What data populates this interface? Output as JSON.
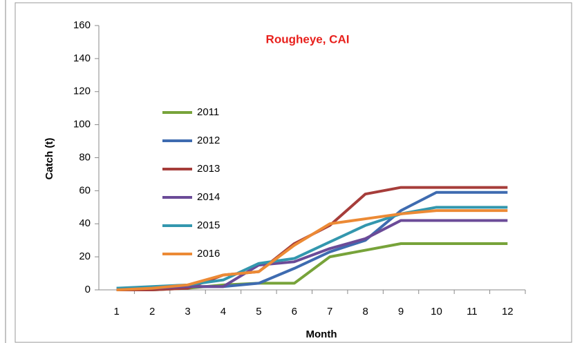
{
  "chart_data": {
    "type": "line",
    "title": "Rougheye, CAI",
    "x_label": "Month",
    "y_label": "Catch (t)",
    "categories": [
      "1",
      "2",
      "3",
      "4",
      "5",
      "6",
      "7",
      "8",
      "9",
      "10",
      "11",
      "12"
    ],
    "ylim": [
      0,
      160
    ],
    "yticks": [
      0,
      20,
      40,
      60,
      80,
      100,
      120,
      140,
      160
    ],
    "grid": false,
    "legend": "left",
    "series": [
      {
        "name": "2011",
        "color": "#77a33a",
        "values": [
          0,
          0,
          1,
          3,
          4,
          4,
          20,
          24,
          28,
          28,
          28,
          28
        ]
      },
      {
        "name": "2012",
        "color": "#3e6bb0",
        "values": [
          0,
          1,
          2,
          2,
          4,
          13,
          23,
          30,
          48,
          59,
          59,
          59
        ]
      },
      {
        "name": "2013",
        "color": "#a63d3a",
        "values": [
          0,
          0,
          1,
          9,
          11,
          28,
          39,
          58,
          62,
          62,
          62,
          62
        ]
      },
      {
        "name": "2014",
        "color": "#6b4b98",
        "values": [
          1,
          1,
          2,
          2,
          15,
          17,
          25,
          31,
          42,
          42,
          42,
          42
        ]
      },
      {
        "name": "2015",
        "color": "#3397ae",
        "values": [
          1,
          2,
          3,
          6,
          16,
          19,
          29,
          39,
          46,
          50,
          50,
          50
        ]
      },
      {
        "name": "2016",
        "color": "#ec8a35",
        "values": [
          0,
          1,
          3,
          9,
          11,
          27,
          40,
          43,
          46,
          48,
          48,
          48
        ]
      }
    ]
  }
}
